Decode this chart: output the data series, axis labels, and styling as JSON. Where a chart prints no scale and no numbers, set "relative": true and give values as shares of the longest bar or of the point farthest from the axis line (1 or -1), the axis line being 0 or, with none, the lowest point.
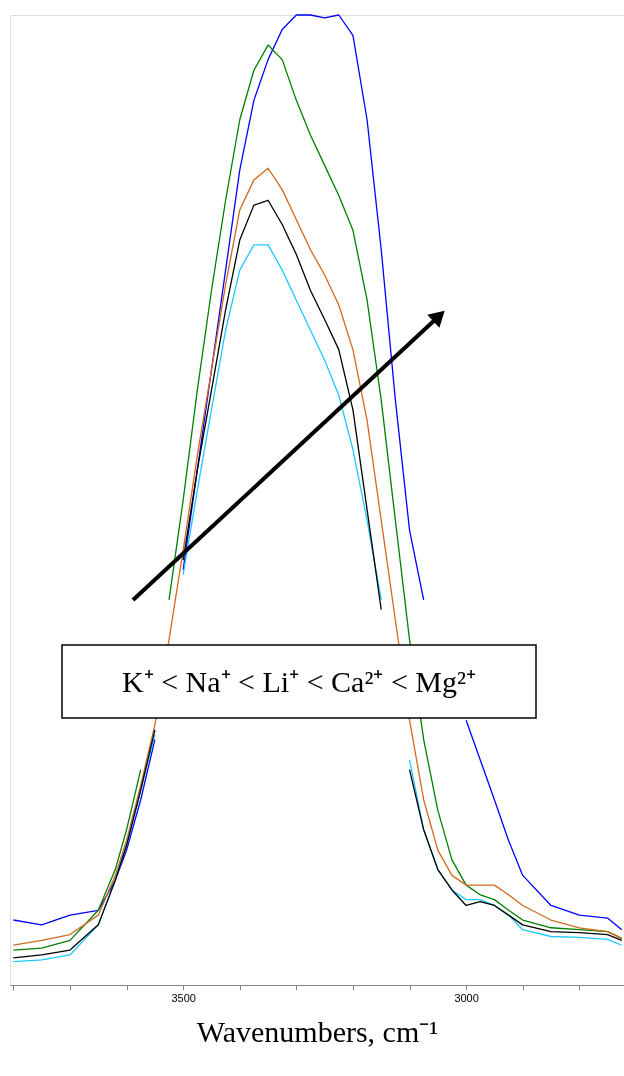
{
  "chart_data": {
    "type": "line",
    "relative": true,
    "xlabel": "Wavenumbers, cm⁻¹",
    "x": [
      3800,
      3750,
      3700,
      3650,
      3620,
      3600,
      3575,
      3550,
      3525,
      3500,
      3475,
      3450,
      3425,
      3400,
      3375,
      3350,
      3325,
      3300,
      3275,
      3250,
      3225,
      3200,
      3175,
      3150,
      3125,
      3100,
      3075,
      3050,
      3025,
      3000,
      2975,
      2950,
      2925,
      2900,
      2850,
      2800,
      2750,
      2725
    ],
    "xlim": [
      3806,
      2721
    ],
    "xticks": [
      {
        "value": 3800,
        "label": null
      },
      {
        "value": 3700,
        "label": null
      },
      {
        "value": 3600,
        "label": null
      },
      3500,
      {
        "value": 3400,
        "label": null
      },
      {
        "value": 3300,
        "label": null
      },
      {
        "value": 3200,
        "label": null
      },
      {
        "value": 3100,
        "label": null
      },
      3000,
      {
        "value": 2900,
        "label": null
      },
      {
        "value": 2800,
        "label": null
      }
    ],
    "grid": false,
    "annotations": [
      "K⁺ < Na⁺ < Li⁺ < Ca²⁺ < Mg²⁺"
    ],
    "series": [
      {
        "color": "#0000ff",
        "values": [
          0.067,
          0.062,
          0.072,
          0.077,
          0.108,
          0.139,
          0.191,
          0.253,
          null,
          0.428,
          0.531,
          0.634,
          0.737,
          0.84,
          0.912,
          0.954,
          0.985,
          1.0,
          1.0,
          0.997,
          1.0,
          0.979,
          0.892,
          0.758,
          0.603,
          0.469,
          0.397,
          null,
          null,
          0.273,
          0.232,
          0.191,
          0.149,
          0.113,
          0.082,
          0.072,
          0.069,
          0.057
        ]
      },
      {
        "color": "#008000",
        "values": [
          0.036,
          0.038,
          0.046,
          0.077,
          0.119,
          0.16,
          0.222,
          null,
          0.397,
          0.5,
          0.613,
          0.716,
          0.809,
          0.892,
          0.943,
          0.969,
          0.954,
          0.912,
          0.876,
          0.845,
          0.814,
          0.778,
          0.706,
          0.603,
          0.479,
          0.356,
          0.253,
          0.18,
          0.129,
          0.103,
          0.093,
          0.088,
          0.077,
          0.067,
          0.059,
          0.057,
          0.055,
          0.048
        ]
      },
      {
        "color": "#d2691e",
        "values": [
          0.041,
          0.046,
          0.052,
          0.072,
          0.113,
          0.149,
          0.206,
          0.268,
          0.356,
          0.448,
          0.546,
          0.634,
          0.722,
          0.799,
          0.83,
          0.842,
          0.82,
          0.789,
          0.758,
          0.732,
          0.701,
          0.655,
          0.582,
          0.479,
          0.376,
          0.273,
          0.191,
          0.139,
          0.113,
          0.103,
          0.103,
          0.103,
          0.093,
          0.082,
          0.067,
          0.059,
          0.055,
          0.048
        ]
      },
      {
        "color": "#1ec8ff",
        "values": [
          0.024,
          0.026,
          0.031,
          0.062,
          0.108,
          0.144,
          0.201,
          0.258,
          null,
          0.423,
          0.51,
          0.593,
          0.675,
          0.737,
          0.763,
          0.763,
          0.737,
          0.706,
          0.675,
          0.644,
          0.608,
          0.552,
          0.479,
          0.397,
          null,
          0.232,
          0.16,
          0.119,
          0.098,
          0.088,
          0.088,
          0.082,
          0.072,
          0.057,
          0.05,
          0.049,
          0.047,
          0.041
        ]
      },
      {
        "color": "#000000",
        "values": [
          0.028,
          0.031,
          0.036,
          0.062,
          0.108,
          0.144,
          0.201,
          0.263,
          null,
          0.438,
          0.531,
          0.613,
          0.696,
          0.768,
          0.804,
          0.809,
          0.784,
          0.753,
          0.716,
          0.686,
          0.655,
          0.593,
          0.49,
          0.387,
          null,
          0.222,
          0.16,
          0.119,
          0.098,
          0.082,
          0.086,
          0.082,
          0.072,
          0.062,
          0.055,
          0.054,
          0.052,
          0.046
        ]
      }
    ]
  }
}
